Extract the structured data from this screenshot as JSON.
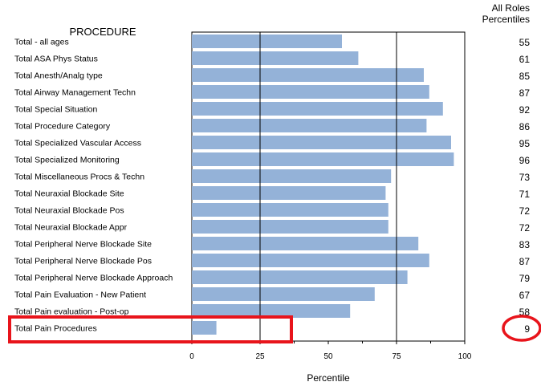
{
  "chart_data": {
    "type": "bar",
    "orientation": "horizontal",
    "row_header": "PROCEDURE",
    "value_header_line1": "All Roles",
    "value_header_line2": "Percentiles",
    "xlabel": "Percentile",
    "xlim": [
      0,
      100
    ],
    "xticks": [
      0,
      25,
      50,
      75,
      100
    ],
    "vertical_gridlines_at": [
      25,
      75
    ],
    "bar_color": "#94b2d8",
    "highlight_color": "#e8141b",
    "highlighted_category": "Total Pain Procedures",
    "categories": [
      "Total - all ages",
      "Total ASA Phys Status",
      "Total Anesth/Analg type",
      "Total Airway Management Techn",
      "Total Special Situation",
      "Total Procedure Category",
      "Total Specialized Vascular Access",
      "Total Specialized Monitoring",
      "Total Miscellaneous Procs & Techn",
      "Total Neuraxial Blockade Site",
      "Total Neuraxial Blockade Pos",
      "Total Neuraxial Blockade Appr",
      "Total Peripheral Nerve Blockade Site",
      "Total Peripheral Nerve Blockade Pos",
      "Total Peripheral Nerve Blockade Approach",
      "Total Pain Evaluation - New Patient",
      "Total Pain evaluation - Post-op",
      "Total Pain Procedures"
    ],
    "values": [
      55,
      61,
      85,
      87,
      92,
      86,
      95,
      96,
      73,
      71,
      72,
      72,
      83,
      87,
      79,
      67,
      58,
      9
    ]
  }
}
